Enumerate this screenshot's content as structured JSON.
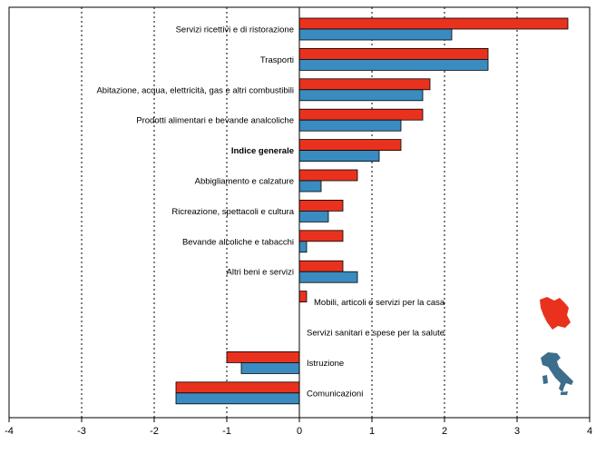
{
  "chart_data": {
    "type": "bar",
    "orientation": "horizontal",
    "categories": [
      "Servizi ricettivi e di ristorazione",
      "Trasporti",
      "Abitazione, acqua, elettricità, gas e altri combustibili",
      "Prodotti alimentari e bevande analcoliche",
      "Indice generale",
      "Abbigliamento e calzature",
      "Ricreazione, spettacoli e cultura",
      "Bevande alcoliche e tabacchi",
      "Altri beni e servizi",
      "Mobili, articoli e servizi per la casa",
      "Servizi sanitari e spese per la salute",
      "Istruzione",
      "Comunicazioni"
    ],
    "bold_category": "Indice generale",
    "series": [
      {
        "color": "#e8321e",
        "map_icon": "region-map-icon",
        "values": [
          3.7,
          2.6,
          1.8,
          1.7,
          1.4,
          0.8,
          0.6,
          0.6,
          0.6,
          0.1,
          0.0,
          -1.0,
          -1.7
        ]
      },
      {
        "color": "#3a8bc0",
        "map_icon": "italy-map-icon",
        "values": [
          2.1,
          2.6,
          1.7,
          1.4,
          1.1,
          0.3,
          0.4,
          0.1,
          0.8,
          0.0,
          0.0,
          -0.8,
          -1.7
        ]
      }
    ],
    "xlim": [
      -4,
      4
    ],
    "xticks": [
      "-4",
      "-3",
      "-2",
      "-1",
      "0",
      "1",
      "2",
      "3",
      "4"
    ],
    "grid": "vertical dotted",
    "legend": "map icons at bottom-right"
  }
}
